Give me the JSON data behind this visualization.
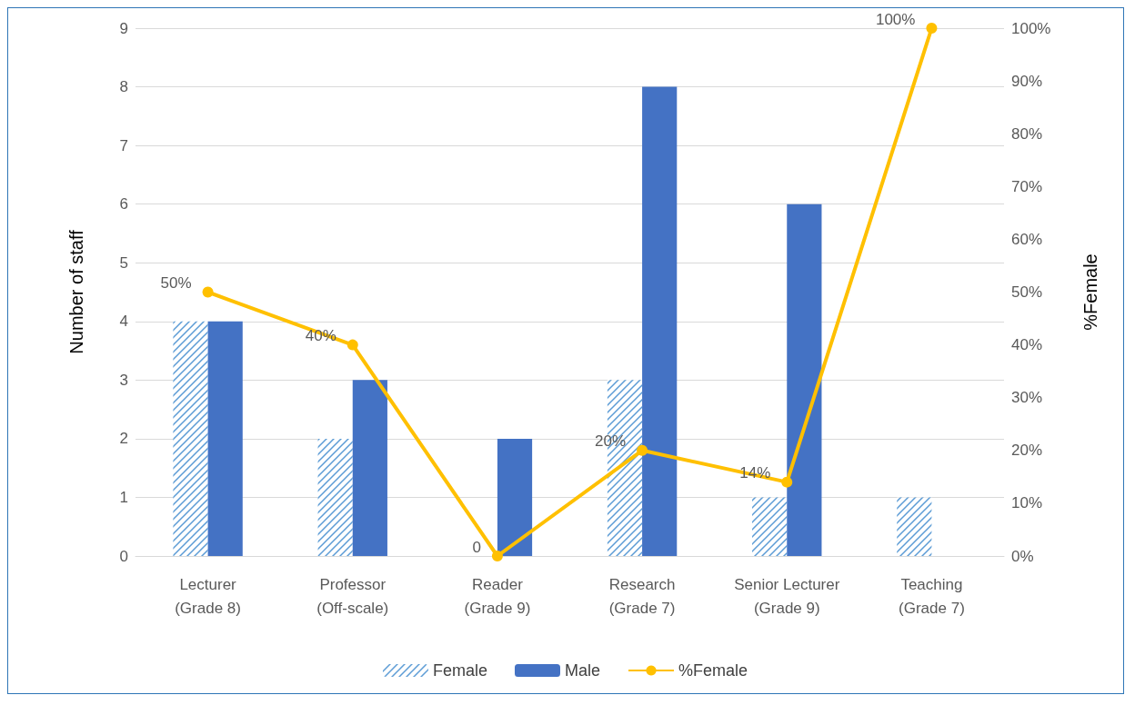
{
  "chart_data": {
    "type": "bar",
    "categories": [
      "Lecturer\n(Grade 8)",
      "Professor\n(Off-scale)",
      "Reader\n(Grade 9)",
      "Research\n(Grade 7)",
      "Senior Lecturer\n(Grade 9)",
      "Teaching\n(Grade 7)"
    ],
    "ylabel": "Number of staff",
    "y2label": "%Female",
    "ylim": [
      0,
      9
    ],
    "yticks": [
      0,
      1,
      2,
      3,
      4,
      5,
      6,
      7,
      8,
      9
    ],
    "y2lim": [
      0,
      100
    ],
    "y2ticks": [
      {
        "value": 0,
        "label": "0%"
      },
      {
        "value": 10,
        "label": "10%"
      },
      {
        "value": 20,
        "label": "20%"
      },
      {
        "value": 30,
        "label": "30%"
      },
      {
        "value": 40,
        "label": "40%"
      },
      {
        "value": 50,
        "label": "50%"
      },
      {
        "value": 60,
        "label": "60%"
      },
      {
        "value": 70,
        "label": "70%"
      },
      {
        "value": 80,
        "label": "80%"
      },
      {
        "value": 90,
        "label": "90%"
      },
      {
        "value": 100,
        "label": "100%"
      }
    ],
    "series": [
      {
        "name": "Female",
        "color": "#5b9bd5",
        "values": [
          4,
          2,
          0,
          3,
          1,
          1
        ]
      },
      {
        "name": "Male",
        "color": "#4472c4",
        "values": [
          4,
          3,
          2,
          8,
          6,
          0
        ]
      },
      {
        "name": "%Female",
        "type": "line",
        "axis": "y2",
        "color": "#ffc000",
        "marker": "circle",
        "values": [
          50,
          40,
          0,
          20,
          14,
          100
        ],
        "value_labels": [
          "50%",
          "40%",
          "0",
          "20%",
          "14%",
          "100%"
        ]
      }
    ],
    "grid": "y",
    "legend": "bottom"
  }
}
